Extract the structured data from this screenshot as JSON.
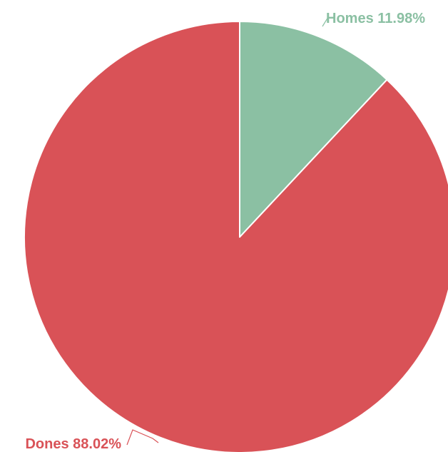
{
  "chart_data": {
    "type": "pie",
    "title": "",
    "slices": [
      {
        "name": "Homes",
        "value": 11.98,
        "label": "Homes 11.98%",
        "color": "#8bc0a3"
      },
      {
        "name": "Dones",
        "value": 88.02,
        "label": "Dones 88.02%",
        "color": "#d95257"
      }
    ],
    "legend": "none"
  }
}
